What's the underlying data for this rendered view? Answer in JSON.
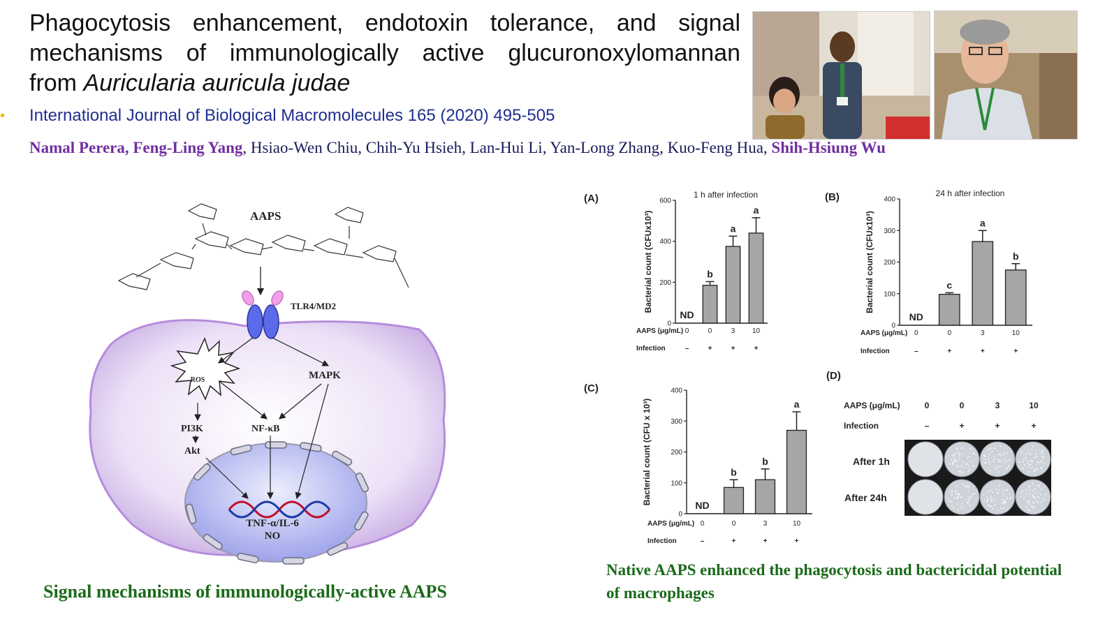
{
  "title": {
    "line1": "Phagocytosis enhancement, endotoxin tolerance, and signal",
    "line2": "mechanisms of immunologically active glucuronoxylomannan",
    "line3_prefix": "from ",
    "line3_italic": "Auricularia auricula judae"
  },
  "journal": "International Journal of Biological Macromolecules 165 (2020) 495-505",
  "authors": {
    "highlighted_1": "Namal Perera, Feng-Ling Yang",
    "plain": ", Hsiao-Wen Chiu, Chih-Yu Hsieh, Lan-Hui Li, Yan-Long Zhang, Kuo-Feng Hua, ",
    "highlighted_2": "Shih-Hsiung Wu"
  },
  "diagram": {
    "polysaccharide_label": "AAPS",
    "receptor_label": "TLR4/MD2",
    "nodes": [
      "ROS",
      "MAPK",
      "PI3K",
      "NF-κB",
      "Akt"
    ],
    "output_line1": "TNF-α/IL-6",
    "output_line2": "NO",
    "caption": "Signal mechanisms of immunologically-active AAPS"
  },
  "colors": {
    "title_text": "#111111",
    "journal_text": "#1f2f8f",
    "author_highlight": "#7030a0",
    "caption_green": "#1a6a1a",
    "bar_fill": "#a6a6a6",
    "cell_fill": "#e6d8f2",
    "nucleus_fill": "#c7c9f2"
  },
  "chart_data": [
    {
      "panel": "(A)",
      "type": "bar",
      "title": "1 h after infection",
      "ylabel": "Bacterial count (CFUx10³)",
      "ylim": [
        0,
        600
      ],
      "yticks": [
        0,
        200,
        400,
        600
      ],
      "categories": [
        "0",
        "0",
        "3",
        "10"
      ],
      "values": [
        0,
        185,
        375,
        440
      ],
      "errors": [
        0,
        18,
        50,
        75
      ],
      "data_labels": [
        "ND",
        "b",
        "a",
        "a"
      ],
      "row_labels": [
        "AAPS (μg/mL)",
        "Infection"
      ],
      "infection": [
        "–",
        "+",
        "+",
        "+"
      ]
    },
    {
      "panel": "(B)",
      "type": "bar",
      "title": "24 h after infection",
      "ylabel": "Bacterial count (CFUx10³)",
      "ylim": [
        0,
        400
      ],
      "yticks": [
        0,
        100,
        200,
        300,
        400
      ],
      "categories": [
        "0",
        "0",
        "3",
        "10"
      ],
      "values": [
        0,
        98,
        265,
        175
      ],
      "errors": [
        0,
        5,
        35,
        20
      ],
      "data_labels": [
        "ND",
        "c",
        "a",
        "b"
      ],
      "row_labels": [
        "AAPS (μg/mL)",
        "Infection"
      ],
      "infection": [
        "–",
        "+",
        "+",
        "+"
      ]
    },
    {
      "panel": "(C)",
      "type": "bar",
      "title": "",
      "ylabel": "Bacterial count (CFU x 10³)",
      "ylim": [
        0,
        400
      ],
      "yticks": [
        0,
        100,
        200,
        300,
        400
      ],
      "categories": [
        "0",
        "0",
        "3",
        "10"
      ],
      "values": [
        0,
        85,
        110,
        270
      ],
      "errors": [
        0,
        25,
        35,
        60
      ],
      "data_labels": [
        "ND",
        "b",
        "b",
        "a"
      ],
      "row_labels": [
        "AAPS (μg/mL)",
        "Infection"
      ],
      "infection": [
        "–",
        "+",
        "+",
        "+"
      ]
    }
  ],
  "panel_d": {
    "label": "(D)",
    "header_aaps": "AAPS (μg/mL)",
    "header_infection": "Infection",
    "aaps": [
      "0",
      "0",
      "3",
      "10"
    ],
    "infection": [
      "–",
      "+",
      "+",
      "+"
    ],
    "row_labels": [
      "After 1h",
      "After 24h"
    ]
  },
  "result_caption": "Native AAPS enhanced the phagocytosis and bactericidal potential of macrophages"
}
